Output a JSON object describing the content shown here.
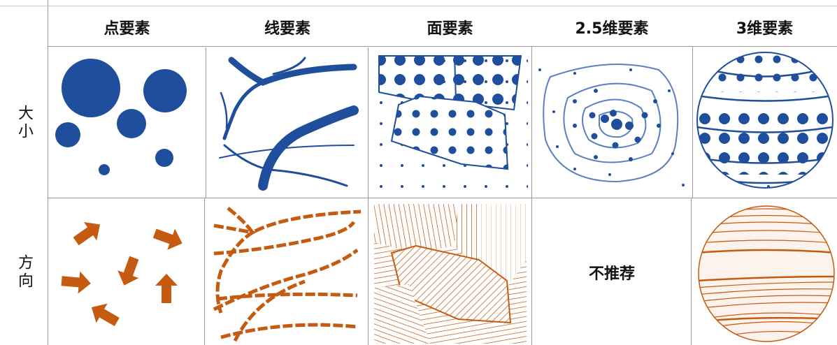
{
  "table": {
    "columns": [
      "点要素",
      "线要素",
      "面要素",
      "2.5维要素",
      "3维要素"
    ],
    "rows": [
      {
        "label": "大小"
      },
      {
        "label": "方向",
        "cells": {
          "3": "不推荐"
        }
      }
    ]
  }
}
